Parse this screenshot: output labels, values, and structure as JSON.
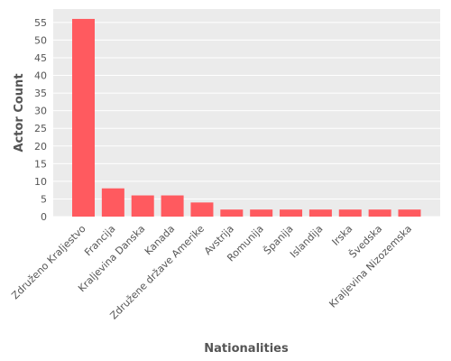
{
  "chart_data": {
    "type": "bar",
    "title": "",
    "xlabel": "Nationalities",
    "ylabel": "Actor Count",
    "categories": [
      "Združeno Kraljestvo",
      "Francija",
      "Kraljevina Danska",
      "Kanada",
      "Združene države Amerike",
      "Avstrija",
      "Romunija",
      "Španija",
      "Islandija",
      "Irska",
      "Švedska",
      "Kraljevina Nizozemska"
    ],
    "values": [
      56,
      8,
      6,
      6,
      4,
      2,
      2,
      2,
      2,
      2,
      2,
      2
    ],
    "ylim": [
      0,
      58.8
    ],
    "yticks": [
      0,
      5,
      10,
      15,
      20,
      25,
      30,
      35,
      40,
      45,
      50,
      55
    ],
    "grid": true,
    "colors": {
      "bar": "#ff5a5f",
      "background": "#ebebeb",
      "grid": "#ffffff",
      "text": "#555555"
    }
  }
}
